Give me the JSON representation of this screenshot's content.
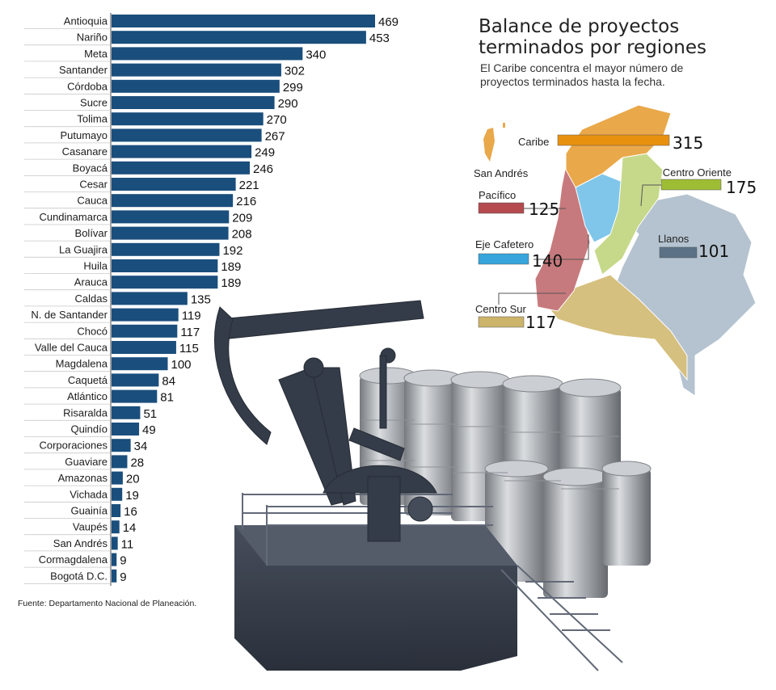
{
  "title_line1": "Balance de proyectos",
  "title_line2": "terminados por regiones",
  "subtitle": "El Caribe concentra el mayor número de proyectos terminados hasta la fecha.",
  "source": "Fuente: Departamento Nacional de Planeación.",
  "map_island_label": "San Andrés",
  "colors": {
    "bar": "#1a4e7c",
    "caribe": "#e8910f",
    "centro_oriente": "#9ebd34",
    "pacifico": "#b54a4f",
    "eje_cafetero": "#37a5dc",
    "llanos": "#5a7186",
    "centro_sur": "#cdb46b"
  },
  "chart_data": [
    {
      "type": "bar",
      "orientation": "horizontal",
      "categories": [
        "Antioquia",
        "Nariño",
        "Meta",
        "Santander",
        "Córdoba",
        "Sucre",
        "Tolima",
        "Putumayo",
        "Casanare",
        "Boyacá",
        "Cesar",
        "Cauca",
        "Cundinamarca",
        "Bolívar",
        "La Guajira",
        "Huila",
        "Arauca",
        "Caldas",
        "N. de Santander",
        "Chocó",
        "Valle del Cauca",
        "Magdalena",
        "Caquetá",
        "Atlántico",
        "Risaralda",
        "Quindío",
        "Corporaciones",
        "Guaviare",
        "Amazonas",
        "Vichada",
        "Guainía",
        "Vaupés",
        "San Andrés",
        "Cormagdalena",
        "Bogotá D.C."
      ],
      "values": [
        469,
        453,
        340,
        302,
        299,
        290,
        270,
        267,
        249,
        246,
        221,
        216,
        209,
        208,
        192,
        189,
        189,
        135,
        119,
        117,
        115,
        100,
        84,
        81,
        51,
        49,
        34,
        28,
        20,
        19,
        16,
        14,
        11,
        9,
        9
      ],
      "xlim": [
        0,
        469
      ],
      "grid": false
    },
    {
      "type": "bar",
      "orientation": "horizontal",
      "title": "Balance de proyectos terminados por regiones",
      "categories": [
        "Caribe",
        "Centro Oriente",
        "Pacífico",
        "Eje Cafetero",
        "Llanos",
        "Centro Sur"
      ],
      "values": [
        315,
        175,
        125,
        140,
        101,
        117
      ],
      "grid": false
    }
  ]
}
